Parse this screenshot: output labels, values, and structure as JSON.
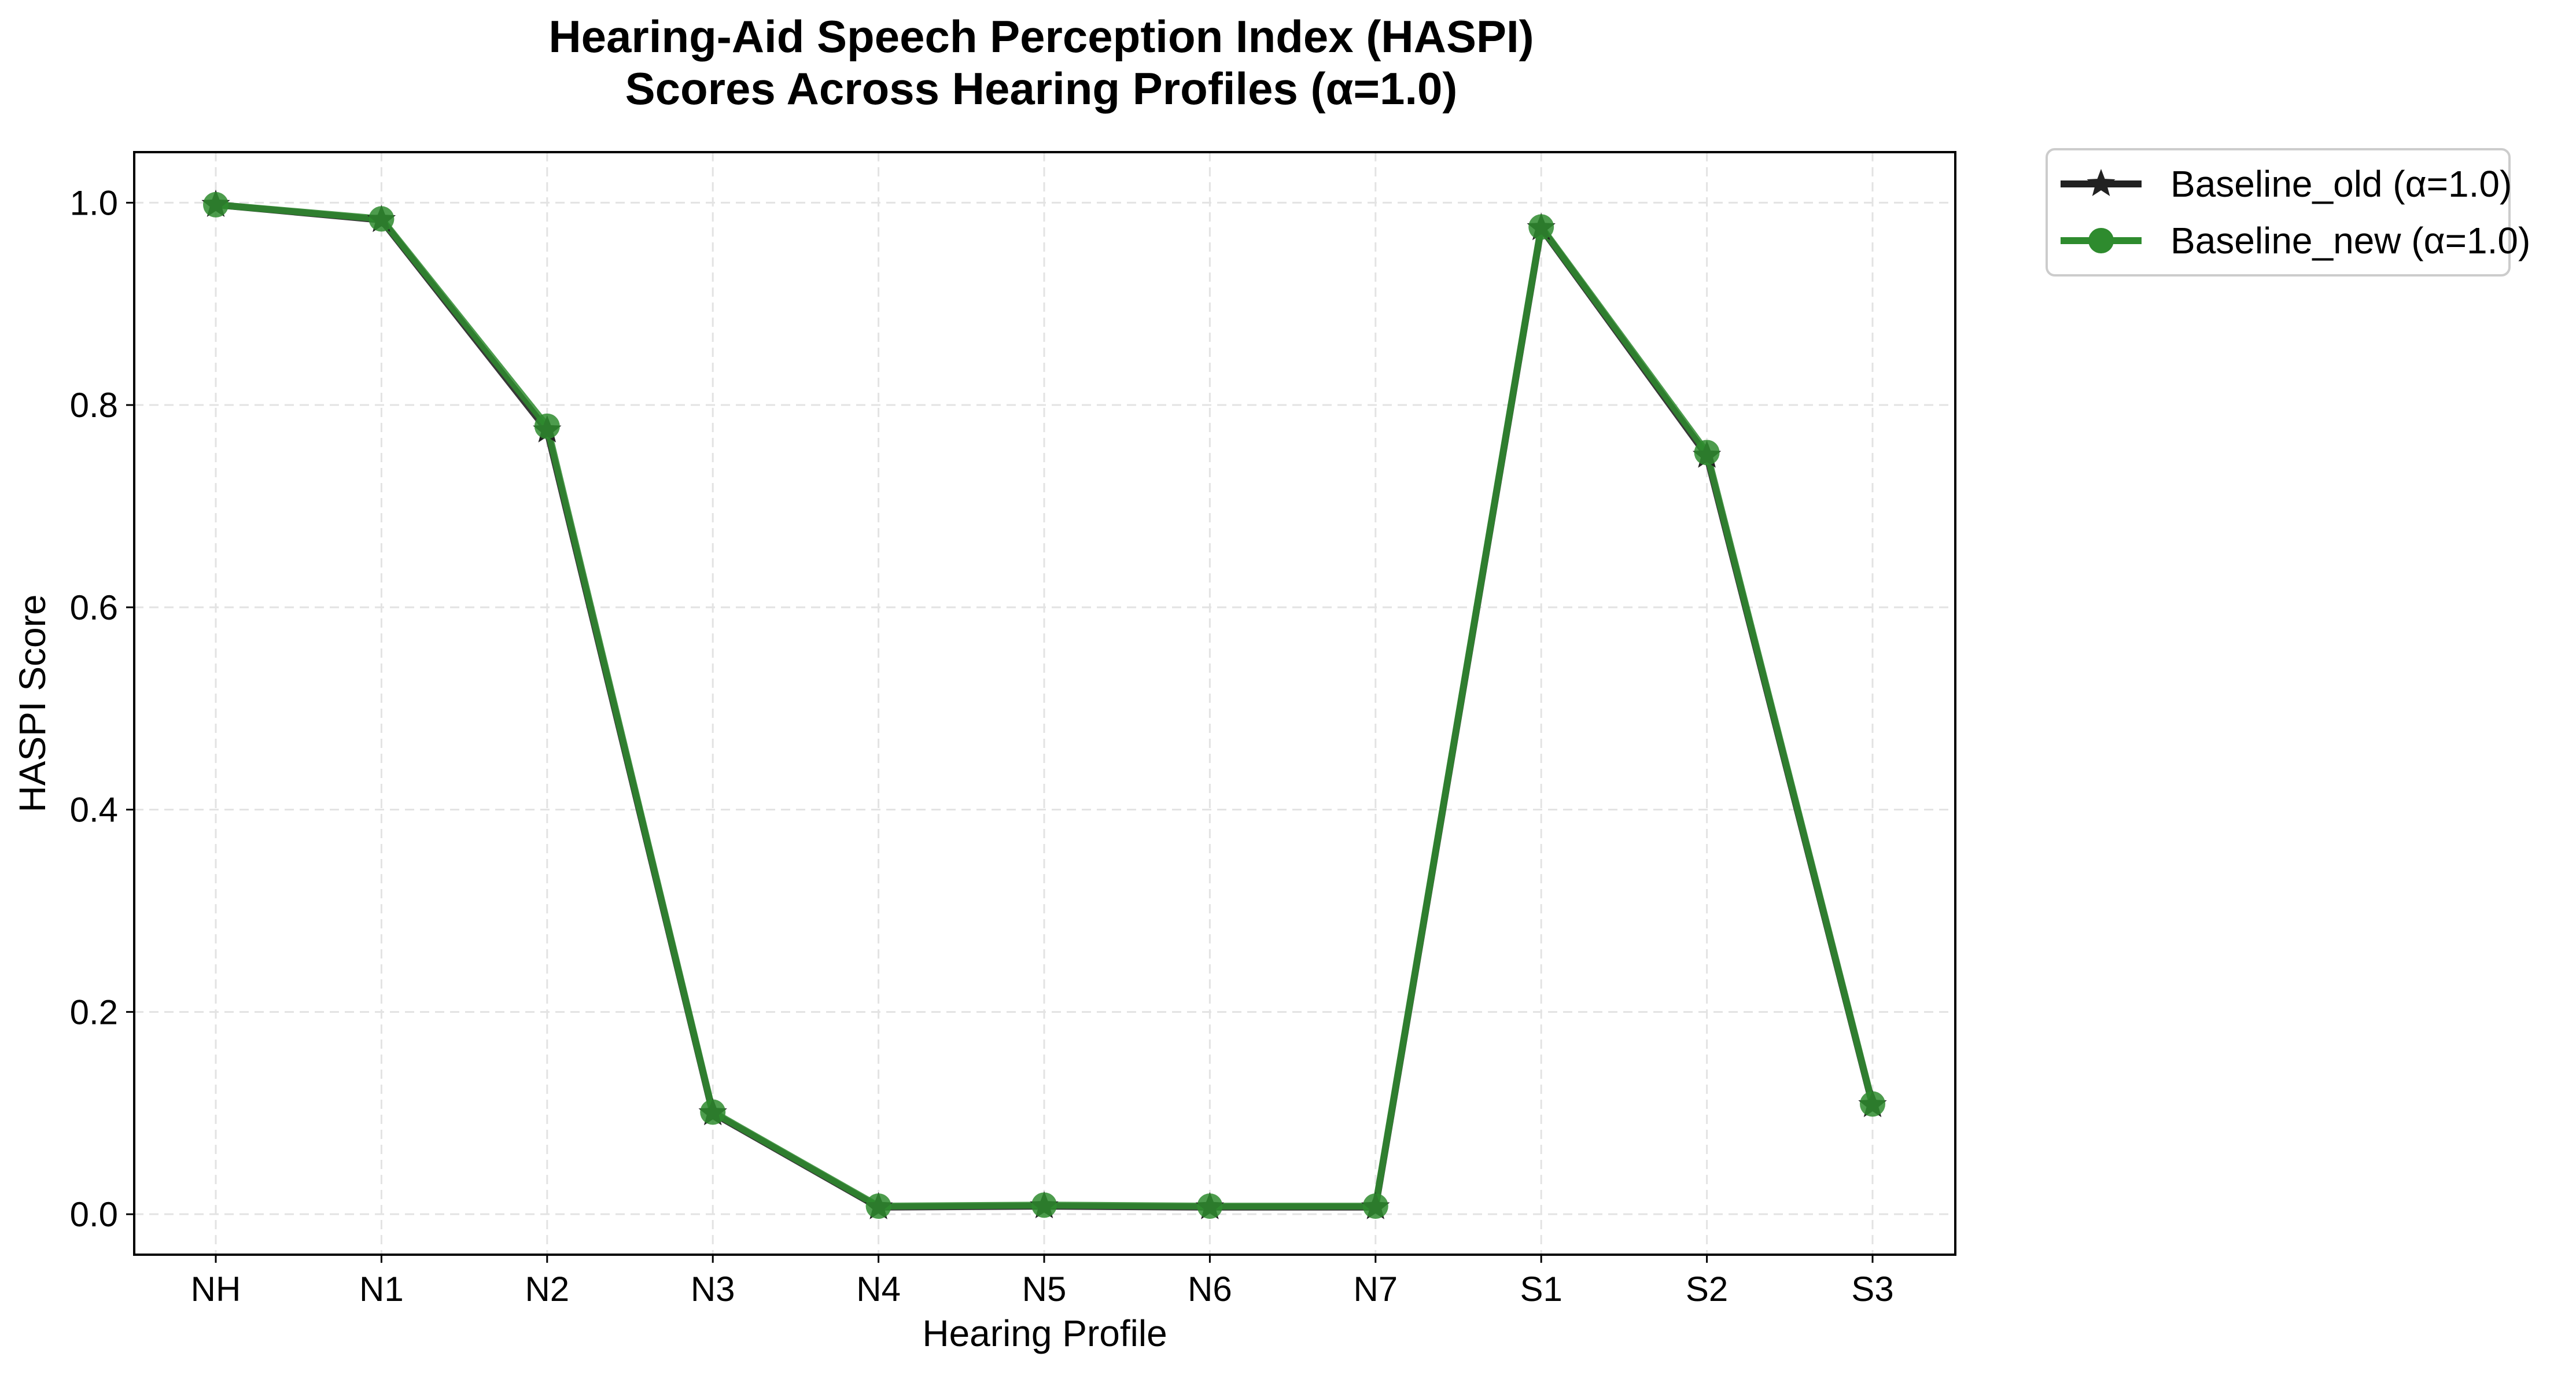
{
  "chart_data": {
    "type": "line",
    "title_lines": [
      "Hearing-Aid Speech Perception Index (HASPI)",
      "Scores Across Hearing Profiles (α=1.0)"
    ],
    "xlabel": "Hearing Profile",
    "ylabel": "HASPI Score",
    "categories": [
      "NH",
      "N1",
      "N2",
      "N3",
      "N4",
      "N5",
      "N6",
      "N7",
      "S1",
      "S2",
      "S3"
    ],
    "ylim": [
      -0.04,
      1.05
    ],
    "yticks": [
      0.0,
      0.2,
      0.4,
      0.6,
      0.8,
      1.0
    ],
    "ytick_labels": [
      "0.0",
      "0.2",
      "0.4",
      "0.6",
      "0.8",
      "1.0"
    ],
    "grid": true,
    "legend_position": "outside-top-right",
    "series": [
      {
        "name": "Baseline_old (α=1.0)",
        "color": "#222222",
        "marker": "star",
        "values": [
          0.998,
          0.983,
          0.775,
          0.1,
          0.007,
          0.008,
          0.007,
          0.007,
          0.975,
          0.75,
          0.108
        ]
      },
      {
        "name": "Baseline_new (α=1.0)",
        "color": "#2e8b2e",
        "marker": "circle",
        "values": [
          0.998,
          0.984,
          0.779,
          0.101,
          0.008,
          0.009,
          0.008,
          0.008,
          0.976,
          0.753,
          0.109
        ]
      }
    ]
  }
}
